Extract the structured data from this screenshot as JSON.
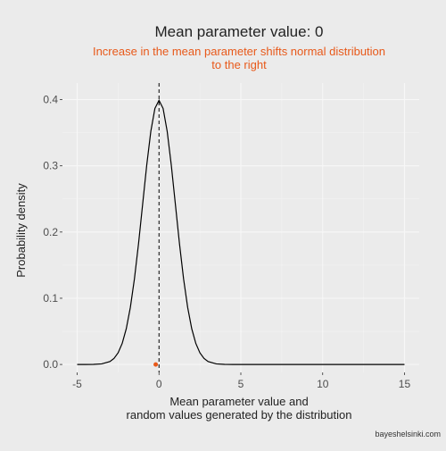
{
  "chart_data": {
    "type": "line",
    "title": "Mean parameter value: 0",
    "subtitle_lines": [
      "Increase in the mean parameter shifts normal distribution",
      "to the right"
    ],
    "xlabel_lines": [
      "Mean parameter value and",
      "random values generated by the distribution"
    ],
    "ylabel": "Probability density",
    "caption": "bayeshelsinki.com",
    "xlim": [
      -5,
      15
    ],
    "ylim": [
      0,
      0.4
    ],
    "xticks": [
      -5,
      0,
      5,
      10,
      15
    ],
    "xtick_labels": [
      "-5",
      "0",
      "5",
      "10",
      "15"
    ],
    "yticks": [
      0,
      0.1,
      0.2,
      0.3,
      0.4
    ],
    "ytick_labels": [
      "0.0",
      "0.1",
      "0.2",
      "0.3",
      "0.4"
    ],
    "grid": true,
    "series": [
      {
        "x": [
          -5,
          -4.5,
          -4,
          -3.5,
          -3,
          -2.75,
          -2.5,
          -2.25,
          -2,
          -1.75,
          -1.5,
          -1.25,
          -1,
          -0.75,
          -0.5,
          -0.25,
          0,
          0.25,
          0.5,
          0.75,
          1,
          1.25,
          1.5,
          1.75,
          2,
          2.25,
          2.5,
          2.75,
          3,
          3.5,
          4,
          4.5,
          5,
          6,
          8,
          10,
          12,
          15
        ],
        "y": [
          0.0,
          0.0,
          0.0001,
          0.0009,
          0.0044,
          0.0091,
          0.0175,
          0.0317,
          0.054,
          0.0863,
          0.1295,
          0.1826,
          0.242,
          0.3011,
          0.3521,
          0.3867,
          0.3989,
          0.3867,
          0.3521,
          0.3011,
          0.242,
          0.1826,
          0.1295,
          0.0863,
          0.054,
          0.0317,
          0.0175,
          0.0091,
          0.0044,
          0.0009,
          0.0001,
          0.0,
          0.0,
          0.0,
          0.0,
          0.0,
          0.0,
          0.0
        ],
        "color": "#000000"
      }
    ],
    "mean_line": {
      "x": 0,
      "style": "dashed",
      "color": "#000000"
    },
    "points": [
      {
        "x": -0.2,
        "y": 0,
        "color": "#e8591a"
      }
    ],
    "subtitle_color": "#e8591a"
  }
}
